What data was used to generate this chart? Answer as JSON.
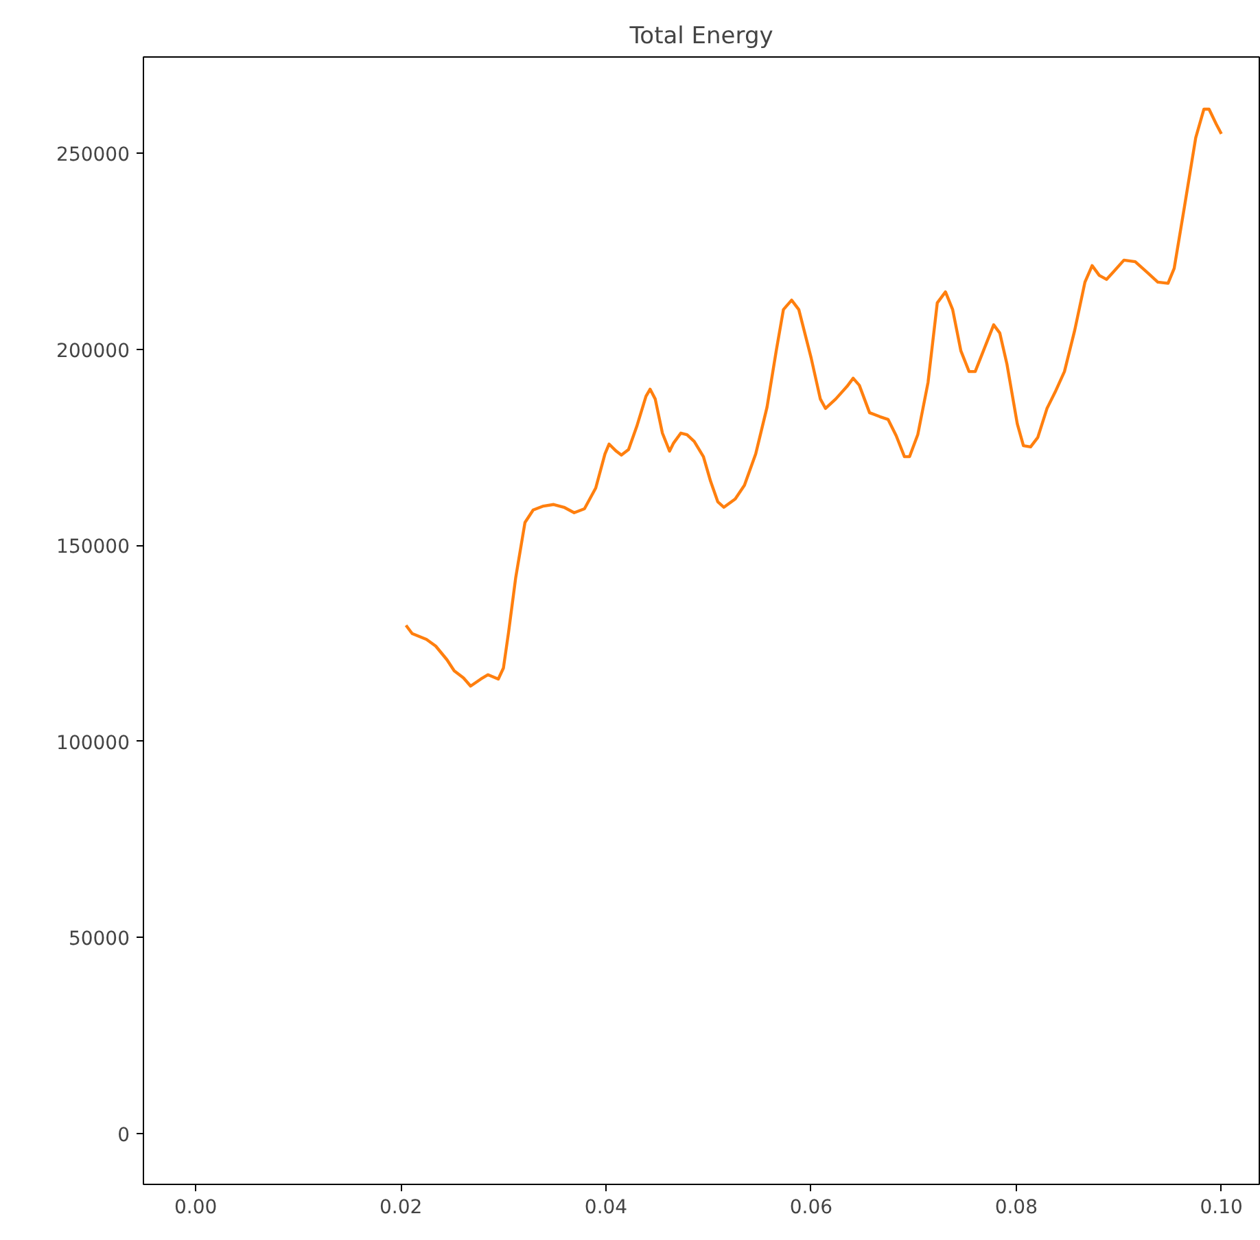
{
  "chart_data": {
    "type": "line",
    "title": "Total Energy",
    "x": [
      0.0205,
      0.0211,
      0.0225,
      0.0234,
      0.0245,
      0.0252,
      0.0261,
      0.0268,
      0.0278,
      0.0285,
      0.0295,
      0.03,
      0.0305,
      0.0312,
      0.0321,
      0.0329,
      0.0339,
      0.0349,
      0.0359,
      0.0369,
      0.0379,
      0.039,
      0.0399,
      0.0403,
      0.041,
      0.0415,
      0.0422,
      0.043,
      0.0439,
      0.0443,
      0.0448,
      0.0455,
      0.0462,
      0.0466,
      0.0473,
      0.0479,
      0.0486,
      0.0495,
      0.0502,
      0.0509,
      0.0515,
      0.0526,
      0.0535,
      0.0546,
      0.0557,
      0.0566,
      0.0573,
      0.0581,
      0.0588,
      0.06,
      0.0609,
      0.0614,
      0.0624,
      0.0635,
      0.0641,
      0.0647,
      0.0657,
      0.0667,
      0.0675,
      0.0683,
      0.0691,
      0.0696,
      0.0704,
      0.0714,
      0.0723,
      0.0731,
      0.0738,
      0.0746,
      0.0754,
      0.076,
      0.0768,
      0.0778,
      0.0784,
      0.0791,
      0.0801,
      0.0807,
      0.0814,
      0.0821,
      0.083,
      0.0838,
      0.0847,
      0.0857,
      0.0867,
      0.0874,
      0.0881,
      0.0888,
      0.0894,
      0.0905,
      0.0916,
      0.0928,
      0.0938,
      0.0948,
      0.0954,
      0.0964,
      0.0975,
      0.0983,
      0.0988,
      0.0995,
      0.1
    ],
    "series": [
      {
        "color": "#ff7f0e",
        "values": [
          129600,
          127500,
          126000,
          124300,
          120800,
          118000,
          116200,
          114100,
          115900,
          117000,
          115900,
          118700,
          127800,
          141800,
          155800,
          159000,
          160000,
          160400,
          159700,
          158300,
          159300,
          164600,
          173300,
          175800,
          174000,
          173000,
          174400,
          180300,
          188000,
          189800,
          187300,
          178600,
          174000,
          176100,
          178600,
          178200,
          176500,
          172600,
          166300,
          161100,
          159700,
          161800,
          165300,
          173300,
          185200,
          199600,
          210100,
          212500,
          210100,
          197800,
          187300,
          184900,
          187300,
          190500,
          192600,
          190800,
          183800,
          182800,
          182100,
          177900,
          172600,
          172600,
          178200,
          191500,
          211800,
          214600,
          210100,
          199600,
          194300,
          194300,
          199600,
          206200,
          204100,
          196100,
          181000,
          175400,
          175100,
          177500,
          184900,
          189100,
          194300,
          204800,
          217100,
          221300,
          218800,
          217800,
          219500,
          222700,
          222300,
          219500,
          217100,
          216800,
          220600,
          236300,
          253900,
          261200,
          261200,
          257400,
          254900
        ]
      }
    ],
    "xlim": [
      -0.0051,
      0.1037
    ],
    "ylim": [
      -12950,
      274500
    ],
    "xticks": [
      {
        "value": 0,
        "label": "0.00"
      },
      {
        "value": 0.02,
        "label": "0.02"
      },
      {
        "value": 0.04,
        "label": "0.04"
      },
      {
        "value": 0.06,
        "label": "0.06"
      },
      {
        "value": 0.08,
        "label": "0.08"
      },
      {
        "value": 0.1,
        "label": "0.10"
      }
    ],
    "yticks": [
      0,
      50000,
      100000,
      150000,
      200000,
      250000
    ],
    "grid": false,
    "marker": "none",
    "line_style": "solid"
  }
}
